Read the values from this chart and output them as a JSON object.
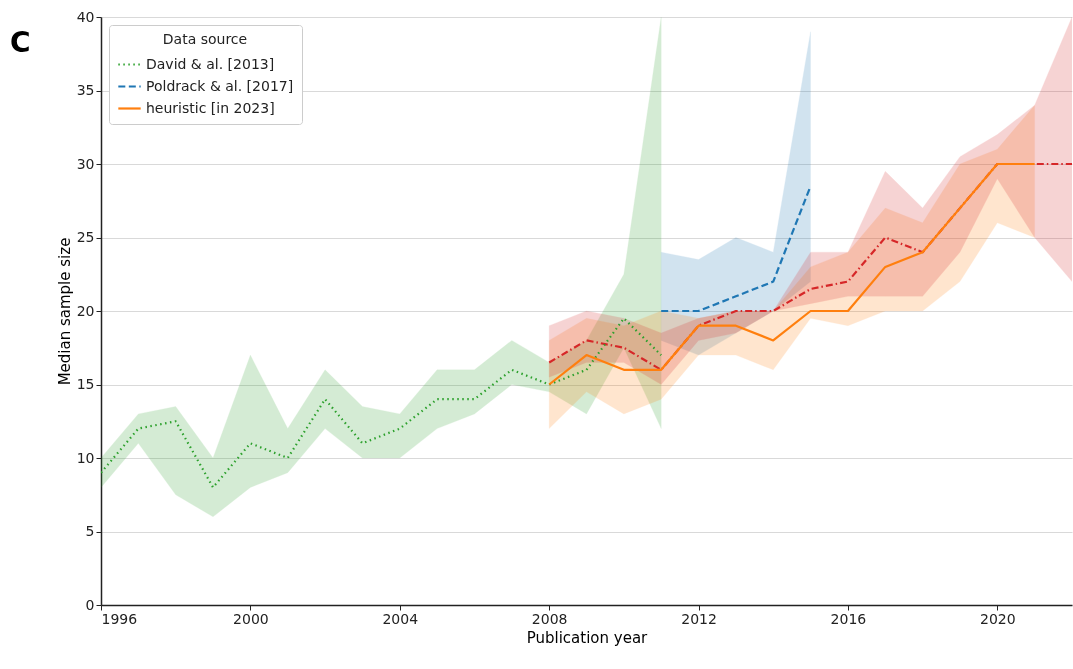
{
  "chart_data": {
    "type": "line",
    "xlabel": "Publication year",
    "ylabel": "Median sample size",
    "legend_title": "Data source",
    "annotations": [
      "C"
    ],
    "xlim": [
      1996,
      2022
    ],
    "xticks": [
      1996,
      2000,
      2004,
      2008,
      2012,
      2016,
      2020
    ],
    "ylim": [
      0,
      40
    ],
    "yticks": [
      0,
      5,
      10,
      15,
      20,
      25,
      30,
      35,
      40
    ],
    "grid": "y",
    "legend": "top left",
    "series": [
      {
        "name": "David & al. [2013]",
        "color": "#2ca02c",
        "line_style": "dotted",
        "x": [
          1996,
          1997,
          1998,
          1999,
          2000,
          2001,
          2002,
          2003,
          2004,
          2005,
          2006,
          2007,
          2008,
          2009,
          2010,
          2011
        ],
        "values": [
          9,
          12,
          12.5,
          8,
          11,
          10,
          14,
          11,
          12,
          14,
          14,
          16,
          15,
          16,
          19.5,
          17
        ],
        "lower": [
          8,
          11,
          7.5,
          6,
          8,
          9,
          12,
          10,
          10,
          12,
          13,
          15,
          14.5,
          13,
          17.5,
          12
        ],
        "upper": [
          10,
          13,
          13.5,
          10,
          17,
          12,
          16,
          13.5,
          13,
          16,
          16,
          18,
          16.5,
          18,
          22.5,
          40
        ]
      },
      {
        "name": "Poldrack & al. [2017]",
        "color": "#1f77b4",
        "line_style": "dashed",
        "x": [
          2011,
          2012,
          2013,
          2014,
          2015
        ],
        "values": [
          20,
          20,
          21,
          22,
          28.5
        ],
        "lower": [
          18,
          17,
          18.5,
          20,
          22
        ],
        "upper": [
          24,
          23.5,
          25,
          24,
          39
        ]
      },
      {
        "name": "heuristic [in 2023]",
        "color": "#ff7f0e",
        "line_style": "solid",
        "x": [
          2008,
          2009,
          2010,
          2011,
          2012,
          2013,
          2014,
          2015,
          2016,
          2017,
          2018,
          2019,
          2020,
          2021
        ],
        "values": [
          15,
          17,
          16,
          16,
          19,
          19,
          18,
          20,
          20,
          23,
          24,
          27,
          30,
          30
        ],
        "lower": [
          12,
          14.5,
          13,
          14,
          17,
          17,
          16,
          19.5,
          19,
          20,
          20,
          22,
          26,
          25
        ],
        "upper": [
          18,
          19.5,
          19,
          20,
          19.5,
          20,
          20,
          23,
          24,
          27,
          26,
          30,
          31,
          34
        ]
      },
      {
        "color": "#d62728",
        "line_style": "dashdot",
        "x": [
          2008,
          2009,
          2010,
          2011,
          2012,
          2013,
          2014,
          2015,
          2016,
          2017,
          2018,
          2019,
          2020,
          2021,
          2022
        ],
        "values": [
          16.5,
          18,
          17.5,
          16,
          19,
          20,
          20,
          21.5,
          22,
          25,
          24,
          27,
          30,
          30,
          30
        ],
        "lower": [
          15.5,
          16.5,
          16.5,
          15,
          18,
          18.5,
          20,
          20.5,
          21,
          21,
          21,
          24,
          29,
          25,
          22
        ],
        "upper": [
          19,
          20,
          19.5,
          18.5,
          19.5,
          20,
          20,
          24,
          24,
          29.5,
          27,
          30.5,
          32,
          34,
          40
        ]
      }
    ]
  }
}
